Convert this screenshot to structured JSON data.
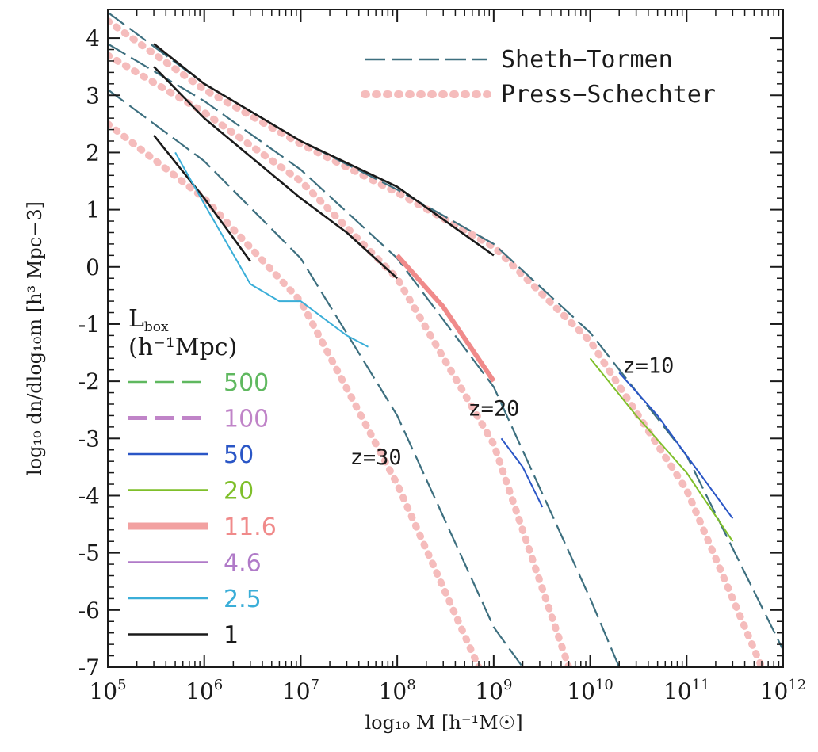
{
  "chart_data": {
    "type": "line",
    "title": "",
    "xlabel": "log₁₀ M [h⁻¹M☉]",
    "ylabel": "log₁₀ dn/dlog₁₀m [h³ Mpc−3]",
    "x_scale": "log",
    "xlim": [
      100000,
      1000000000000
    ],
    "ylim": [
      -7,
      4.5
    ],
    "x_ticks": [
      {
        "value": 100000,
        "base": "10",
        "exp": "5"
      },
      {
        "value": 1000000,
        "base": "10",
        "exp": "6"
      },
      {
        "value": 10000000,
        "base": "10",
        "exp": "7"
      },
      {
        "value": 100000000,
        "base": "10",
        "exp": "8"
      },
      {
        "value": 1000000000,
        "base": "10",
        "exp": "9"
      },
      {
        "value": 10000000000,
        "base": "10",
        "exp": "10"
      },
      {
        "value": 100000000000,
        "base": "10",
        "exp": "11"
      },
      {
        "value": 1000000000000,
        "base": "10",
        "exp": "12"
      }
    ],
    "y_ticks": [
      "4",
      "3",
      "2",
      "1",
      "0",
      "-1",
      "-2",
      "-3",
      "-4",
      "-5",
      "-6",
      "-7"
    ],
    "grid": false,
    "legend_models": {
      "placement": "top-right",
      "items": [
        {
          "label": "Sheth−Tormen",
          "color": "#3d6f7f",
          "style": "long-dash"
        },
        {
          "label": "Press−Schechter",
          "color": "#f2a6a6",
          "style": "thick-dotted"
        }
      ]
    },
    "legend_boxes": {
      "placement": "left",
      "title": "L",
      "title_sub": "box",
      "unit": "(h⁻¹Mpc)",
      "items": [
        {
          "label": "500",
          "color": "#5fb85f",
          "style": "dashed"
        },
        {
          "label": "100",
          "color": "#c084c8",
          "style": "dashed"
        },
        {
          "label": "50",
          "color": "#2a56c6",
          "style": "solid"
        },
        {
          "label": "20",
          "color": "#7fbf2a",
          "style": "solid"
        },
        {
          "label": "11.6",
          "color": "#f08a8a",
          "style": "thick"
        },
        {
          "label": "4.6",
          "color": "#b07ac8",
          "style": "solid"
        },
        {
          "label": "2.5",
          "color": "#3aaed8",
          "style": "solid"
        },
        {
          "label": "1",
          "color": "#1a1a1a",
          "style": "solid"
        }
      ]
    },
    "annotations": [
      {
        "text": "z=10",
        "x": 40000000000,
        "y": -1.85
      },
      {
        "text": "z=20",
        "x": 1000000000,
        "y": -2.6
      },
      {
        "text": "z=30",
        "x": 60000000,
        "y": -3.45
      }
    ],
    "series": [
      {
        "model": "Sheth−Tormen",
        "redshift": "10",
        "x": [
          100000,
          1000000,
          10000000,
          100000000,
          1000000000,
          10000000000,
          100000000000,
          1000000000000
        ],
        "y": [
          4.45,
          3.2,
          2.2,
          1.35,
          0.4,
          -1.15,
          -3.3,
          -6.7
        ]
      },
      {
        "model": "Sheth−Tormen",
        "redshift": "20",
        "x": [
          100000,
          1000000,
          10000000,
          100000000,
          1000000000,
          10000000000,
          20000000000
        ],
        "y": [
          3.9,
          2.9,
          1.7,
          0.15,
          -2.1,
          -5.8,
          -7
        ]
      },
      {
        "model": "Sheth−Tormen",
        "redshift": "30",
        "x": [
          100000,
          1000000,
          10000000,
          100000000,
          1000000000,
          2000000000
        ],
        "y": [
          3.1,
          1.85,
          0.15,
          -2.6,
          -6.3,
          -7
        ]
      },
      {
        "model": "Press−Schechter",
        "redshift": "10",
        "x": [
          100000,
          1000000,
          10000000,
          100000000,
          1000000000,
          10000000000,
          100000000000,
          600000000000
        ],
        "y": [
          4.3,
          3.1,
          2.15,
          1.3,
          0.35,
          -1.3,
          -3.9,
          -7
        ]
      },
      {
        "model": "Press−Schechter",
        "redshift": "20",
        "x": [
          100000,
          1000000,
          10000000,
          100000000,
          1000000000,
          6000000000
        ],
        "y": [
          3.7,
          2.7,
          1.5,
          -0.2,
          -3.1,
          -7
        ]
      },
      {
        "model": "Press−Schechter",
        "redshift": "30",
        "x": [
          100000,
          1000000,
          10000000,
          100000000,
          700000000
        ],
        "y": [
          2.5,
          1.2,
          -0.6,
          -3.8,
          -7
        ]
      },
      {
        "box": "1",
        "color": "#1a1a1a",
        "x": [
          300000,
          1000000,
          10000000,
          100000000,
          1000000000
        ],
        "y": [
          3.9,
          3.2,
          2.2,
          1.4,
          0.2
        ]
      },
      {
        "box": "1",
        "color": "#1a1a1a",
        "x": [
          300000,
          1000000,
          10000000,
          30000000,
          100000000
        ],
        "y": [
          3.5,
          2.6,
          1.2,
          0.6,
          -0.2
        ]
      },
      {
        "box": "1",
        "color": "#1a1a1a",
        "x": [
          300000,
          1000000,
          3000000
        ],
        "y": [
          2.3,
          1.2,
          0.1
        ]
      },
      {
        "box": "2.5",
        "color": "#3aaed8",
        "x": [
          500000,
          1000000,
          3000000,
          6000000,
          10000000,
          30000000,
          50000000
        ],
        "y": [
          2.0,
          1.1,
          -0.3,
          -0.6,
          -0.6,
          -1.2,
          -1.4
        ]
      },
      {
        "box": "11.6",
        "color": "#f08a8a",
        "x": [
          100000000,
          300000000,
          1000000000
        ],
        "y": [
          0.2,
          -0.7,
          -2.0
        ]
      },
      {
        "box": "50",
        "color": "#2a56c6",
        "x": [
          1200000000,
          2000000000,
          3200000000
        ],
        "y": [
          -3.0,
          -3.5,
          -4.2
        ]
      },
      {
        "box": "50",
        "color": "#2a56c6",
        "x": [
          20000000000,
          50000000000,
          100000000000,
          300000000000
        ],
        "y": [
          -1.85,
          -2.6,
          -3.3,
          -4.4
        ]
      },
      {
        "box": "20",
        "color": "#7fbf2a",
        "x": [
          10000000000,
          30000000000,
          100000000000,
          300000000000
        ],
        "y": [
          -1.6,
          -2.6,
          -3.6,
          -4.8
        ]
      }
    ]
  }
}
